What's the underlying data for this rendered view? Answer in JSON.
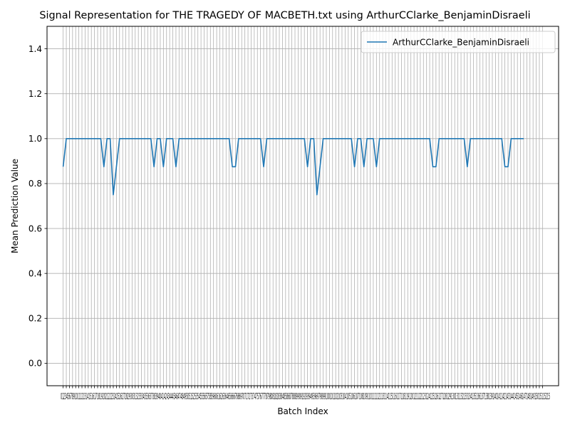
{
  "chart_data": {
    "type": "line",
    "title": "Signal Representation for THE TRAGEDY OF MACBETH.txt using ArthurCClarke_BenjaminDisraeli",
    "xlabel": "Batch Index",
    "ylabel": "Mean Prediction Value",
    "xlim": [
      -5.15,
      158.15
    ],
    "ylim": [
      -0.1,
      1.5
    ],
    "yticks": [
      0.0,
      0.2,
      0.4,
      0.6,
      0.8,
      1.0,
      1.2,
      1.4
    ],
    "ytick_labels": [
      "0.0",
      "0.2",
      "0.4",
      "0.6",
      "0.8",
      "1.0",
      "1.2",
      "1.4"
    ],
    "x_first": 0,
    "x_last": 153,
    "xtick_labels_rendered": "012345678910111213141516171819202122232425262728293031323334353637383940414243444546474849505152535455565758596061626364656667686970717273747576777879808182838485868788899091929394959697989910010110210310410510610710810911011111211311411511611711811912012112212312412512612712812913013113213313413513613713813914014114214314414514614714814915015115215",
    "grid": true,
    "legend_position": "top-right",
    "line_color": "#1f77b4",
    "series": [
      {
        "name": "ArthurCClarke_BenjaminDisraeli",
        "values": [
          0.875,
          1,
          1,
          1,
          1,
          1,
          1,
          1,
          1,
          1,
          1,
          1,
          1,
          0.875,
          1,
          1,
          0.75,
          0.875,
          1,
          1,
          1,
          1,
          1,
          1,
          1,
          1,
          1,
          1,
          1,
          0.875,
          1,
          1,
          0.875,
          1,
          1,
          1,
          0.875,
          1,
          1,
          1,
          1,
          1,
          1,
          1,
          1,
          1,
          1,
          1,
          1,
          1,
          1,
          1,
          1,
          1,
          0.875,
          0.875,
          1,
          1,
          1,
          1,
          1,
          1,
          1,
          1,
          0.875,
          1,
          1,
          1,
          1,
          1,
          1,
          1,
          1,
          1,
          1,
          1,
          1,
          1,
          0.875,
          1,
          1,
          0.75,
          0.875,
          1,
          1,
          1,
          1,
          1,
          1,
          1,
          1,
          1,
          1,
          0.875,
          1,
          1,
          0.875,
          1,
          1,
          1,
          0.875,
          1,
          1,
          1,
          1,
          1,
          1,
          1,
          1,
          1,
          1,
          1,
          1,
          1,
          1,
          1,
          1,
          1,
          0.875,
          0.875,
          1,
          1,
          1,
          1,
          1,
          1,
          1,
          1,
          1,
          0.875,
          1,
          1,
          1,
          1,
          1,
          1,
          1,
          1,
          1,
          1,
          1,
          0.875,
          0.875,
          1,
          1,
          1,
          1,
          1
        ]
      }
    ]
  }
}
